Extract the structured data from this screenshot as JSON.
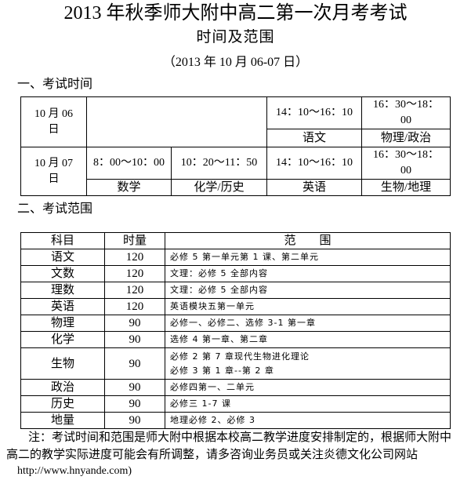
{
  "header": {
    "title": "2013 年秋季师大附中高二第一次月考考试",
    "subtitle": "时间及范围",
    "date": "（2013 年 10 月 06-07 日）"
  },
  "section1": {
    "heading": "一、考试时间"
  },
  "schedule": {
    "day1": {
      "date": "10 月 06 日",
      "slots": [
        {
          "time": "14：10～16：10",
          "subject": "语文"
        },
        {
          "time": "16：30～18：00",
          "subject": "物理/政治"
        }
      ]
    },
    "day2": {
      "date": "10 月 07 日",
      "slots": [
        {
          "time": "8：00～10：00",
          "subject": "数学"
        },
        {
          "time": "10：20～11：50",
          "subject": "化学/历史"
        },
        {
          "time": "14：10～16：10",
          "subject": "英语"
        },
        {
          "time": "16：30～18：00",
          "subject": "生物/地理"
        }
      ]
    }
  },
  "section2": {
    "heading": "二、考试范围"
  },
  "scope": {
    "headers": [
      "科目",
      "时量",
      "范　　围"
    ],
    "rows": [
      {
        "subject": "语文",
        "duration": "120",
        "range": [
          "必修 5 第一单元第 1 课、第二单元"
        ]
      },
      {
        "subject": "文数",
        "duration": "120",
        "range": [
          "文理：必修 5 全部内容"
        ]
      },
      {
        "subject": "理数",
        "duration": "120",
        "range": [
          "文理：必修 5 全部内容"
        ]
      },
      {
        "subject": "英语",
        "duration": "120",
        "range": [
          "英语模块五第一单元"
        ]
      },
      {
        "subject": "物理",
        "duration": "90",
        "range": [
          "必修一、必修二、选修 3-1 第一章"
        ]
      },
      {
        "subject": "化学",
        "duration": "90",
        "range": [
          "选修 4 第一章、第二章"
        ]
      },
      {
        "subject": "生物",
        "duration": "90",
        "range": [
          "必修 2 第 7 章现代生物进化理论",
          "必修 3 第 1 章--第 2 章"
        ]
      },
      {
        "subject": "政治",
        "duration": "90",
        "range": [
          "必修四第一、二单元"
        ]
      },
      {
        "subject": "历史",
        "duration": "90",
        "range": [
          "必修三 1-7 课"
        ]
      },
      {
        "subject": "地量",
        "duration": "90",
        "range": [
          "地理必修 2、必修 3"
        ]
      }
    ]
  },
  "note": {
    "line1": "注：考试时间和范围是师大附中根据本校高二教学进度安排制定的，根据师大附中",
    "line2": "高二的教学实际进度可能会有所调整，请多咨询业务员或关注炎德文化公司网站",
    "url": "http://www.hnyande.com)"
  }
}
